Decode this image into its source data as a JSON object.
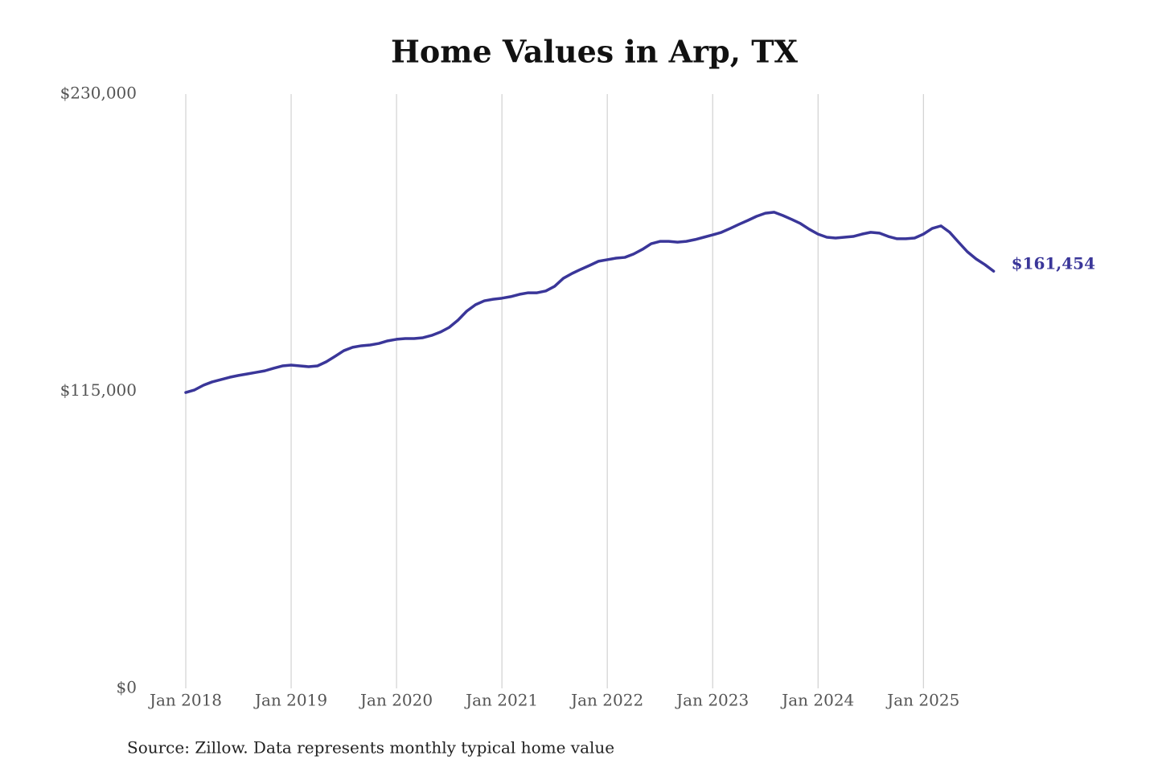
{
  "chart_data": {
    "type": "line",
    "title": "Home Values in Arp, TX",
    "source": "Source: Zillow. Data represents monthly typical home value",
    "categories": [
      "Jan 2018",
      null,
      null,
      null,
      null,
      null,
      null,
      null,
      null,
      null,
      null,
      null,
      "Jan 2019",
      null,
      null,
      null,
      null,
      null,
      null,
      null,
      null,
      null,
      null,
      null,
      "Jan 2020",
      null,
      null,
      null,
      null,
      null,
      null,
      null,
      null,
      null,
      null,
      null,
      "Jan 2021",
      null,
      null,
      null,
      null,
      null,
      null,
      null,
      null,
      null,
      null,
      null,
      "Jan 2022",
      null,
      null,
      null,
      null,
      null,
      null,
      null,
      null,
      null,
      null,
      null,
      "Jan 2023",
      null,
      null,
      null,
      null,
      null,
      null,
      null,
      null,
      null,
      null,
      null,
      "Jan 2024",
      null,
      null,
      null,
      null,
      null,
      null,
      null,
      null,
      null,
      null,
      null,
      "Jan 2025",
      null,
      null,
      null,
      null,
      null,
      null,
      null,
      null
    ],
    "series": [
      {
        "color": "#3a3699",
        "values": [
          114500,
          115500,
          117300,
          118600,
          119500,
          120400,
          121100,
          121700,
          122300,
          122900,
          123900,
          124800,
          125100,
          124800,
          124500,
          124800,
          126400,
          128500,
          130700,
          132000,
          132600,
          132900,
          133500,
          134500,
          135100,
          135400,
          135400,
          135700,
          136600,
          137900,
          139700,
          142500,
          146000,
          148500,
          150000,
          150600,
          151000,
          151600,
          152500,
          153100,
          153100,
          153800,
          155600,
          158700,
          160600,
          162200,
          163700,
          165300,
          165900,
          166500,
          166800,
          168100,
          169900,
          172100,
          173000,
          173000,
          172700,
          173000,
          173700,
          174600,
          175500,
          176500,
          178000,
          179600,
          181100,
          182700,
          183900,
          184300,
          183000,
          181500,
          179900,
          177700,
          175800,
          174600,
          174300,
          174600,
          174900,
          175800,
          176500,
          176200,
          174900,
          174000,
          174000,
          174300,
          175800,
          178000,
          179000,
          176500,
          172700,
          169000,
          166200,
          164000,
          161454
        ],
        "value_labels": [
          null,
          null,
          null,
          null,
          null,
          null,
          null,
          null,
          null,
          null,
          null,
          null,
          null,
          null,
          null,
          null,
          null,
          null,
          null,
          null,
          null,
          null,
          null,
          null,
          null,
          null,
          null,
          null,
          null,
          null,
          null,
          null,
          null,
          null,
          null,
          null,
          null,
          null,
          null,
          null,
          null,
          null,
          null,
          null,
          null,
          null,
          null,
          null,
          null,
          null,
          null,
          null,
          null,
          null,
          null,
          null,
          null,
          null,
          null,
          null,
          null,
          null,
          null,
          null,
          null,
          null,
          null,
          null,
          null,
          null,
          null,
          null,
          null,
          null,
          null,
          null,
          null,
          null,
          null,
          null,
          null,
          null,
          null,
          null,
          null,
          null,
          null,
          null,
          null,
          null,
          null,
          null,
          "$161,454"
        ]
      }
    ],
    "ylim": [
      0,
      230000
    ],
    "yticks": [
      {
        "value": 0,
        "label": "$0"
      },
      {
        "value": 115000,
        "label": "$115,000"
      },
      {
        "value": 230000,
        "label": "$230,000"
      }
    ],
    "grid": true
  }
}
